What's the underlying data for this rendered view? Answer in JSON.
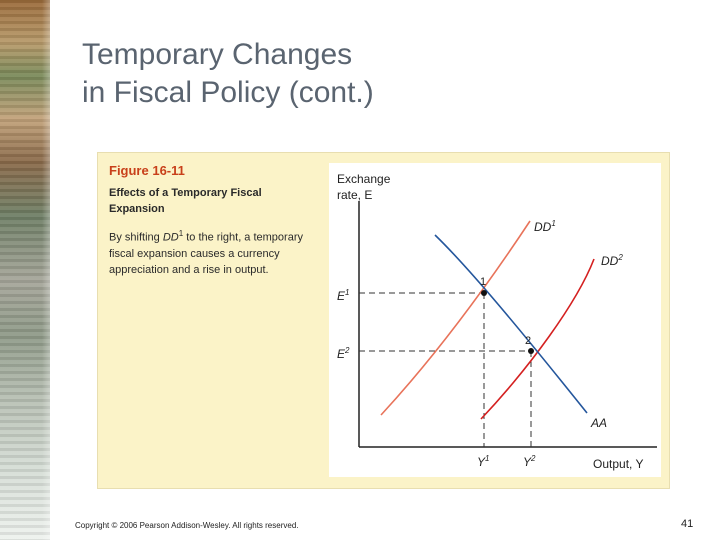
{
  "slide": {
    "title_line1": "Temporary Changes",
    "title_line2": "in Fiscal Policy (cont.)",
    "copyright": "Copyright © 2006 Pearson Addison-Wesley. All rights reserved.",
    "page_number": "41"
  },
  "figure": {
    "number": "Figure 16-11",
    "title": "Effects of a Temporary Fiscal Expansion",
    "caption_pre": "By shifting ",
    "caption_curve": "DD",
    "caption_sup": "1",
    "caption_post": " to the right, a temporary fiscal expansion causes a currency appreciation and a rise in output."
  },
  "diagram": {
    "y_axis_label_line1": "Exchange",
    "y_axis_label_line2": "rate, E",
    "x_axis_label": "Output, Y",
    "curves": [
      {
        "name": "DD1",
        "label": "DD",
        "sup": "1",
        "color": "#e8735a"
      },
      {
        "name": "DD2",
        "label": "DD",
        "sup": "2",
        "color": "#d42020"
      },
      {
        "name": "AA",
        "label": "AA",
        "sup": "",
        "color": "#24569c"
      }
    ],
    "equilibria": [
      {
        "name": "point-1",
        "label": "1",
        "y_tick": "E",
        "y_sup": "1",
        "x_tick": "Y",
        "x_sup": "1"
      },
      {
        "name": "point-2",
        "label": "2",
        "y_tick": "E",
        "y_sup": "2",
        "x_tick": "Y",
        "x_sup": "2"
      }
    ]
  }
}
